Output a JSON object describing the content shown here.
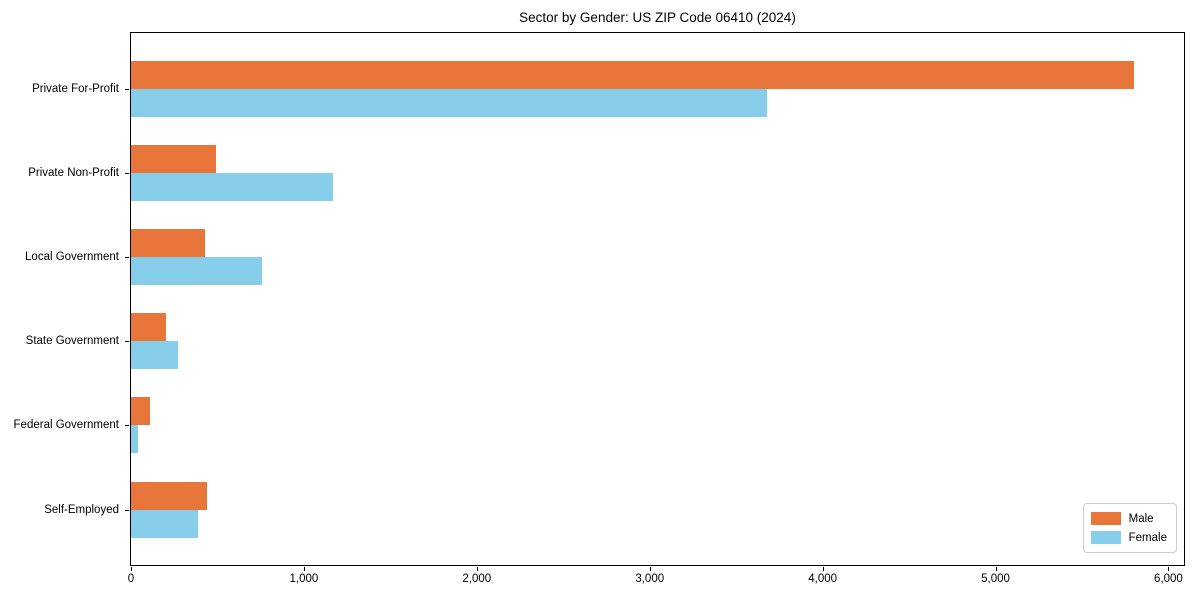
{
  "figure": {
    "background": "#ffffff",
    "spine_color": "#000000"
  },
  "chart_data": {
    "type": "bar",
    "orientation": "horizontal",
    "title": "Sector by Gender: US ZIP Code 06410 (2024)",
    "categories": [
      "Private For-Profit",
      "Private Non-Profit",
      "Local Government",
      "State Government",
      "Federal Government",
      "Self-Employed"
    ],
    "series": [
      {
        "name": "Male",
        "color": "#e8763b",
        "values": [
          5800,
          490,
          430,
          200,
          110,
          440
        ]
      },
      {
        "name": "Female",
        "color": "#87ceeb",
        "values": [
          3680,
          1170,
          760,
          270,
          40,
          390
        ]
      }
    ],
    "xlabel": "",
    "ylabel": "",
    "xlim": [
      0,
      6090
    ],
    "x_ticks": [
      0,
      1000,
      2000,
      3000,
      4000,
      5000,
      6000
    ],
    "x_tick_labels": [
      "0",
      "1,000",
      "2,000",
      "3,000",
      "4,000",
      "5,000",
      "6,000"
    ],
    "grid": false,
    "legend": {
      "position": "lower-right",
      "entries": [
        {
          "label": "Male",
          "color": "#e8763b"
        },
        {
          "label": "Female",
          "color": "#87ceeb"
        }
      ]
    }
  }
}
